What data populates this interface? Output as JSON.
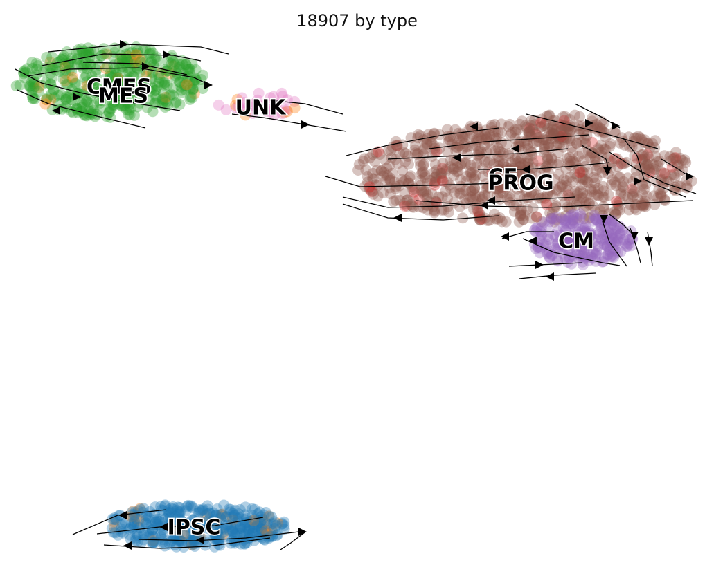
{
  "chart_data": {
    "type": "scatter",
    "title": "18907 by type",
    "xlabel": "",
    "ylabel": "",
    "grid": false,
    "axes_visible": false,
    "stream_arrows": true,
    "clusters": [
      {
        "name": "CMES",
        "color": "#2ca02c",
        "label_text": "CMES"
      },
      {
        "name": "MES",
        "color": "#2ca02c",
        "label_text": "MES"
      },
      {
        "name": "UNK",
        "color": "#e377c2",
        "label_text": "UNK"
      },
      {
        "name": "CF",
        "color": "#8c564b",
        "label_text": "CF"
      },
      {
        "name": "PROG",
        "color": "#8c564b",
        "label_text": "PROG"
      },
      {
        "name": "CM",
        "color": "#9467bd",
        "label_text": "CM"
      },
      {
        "name": "IPSC",
        "color": "#1f77b4",
        "label_text": "IPSC"
      }
    ],
    "minor_colors": [
      "#ff7f0e",
      "#d62728"
    ]
  }
}
